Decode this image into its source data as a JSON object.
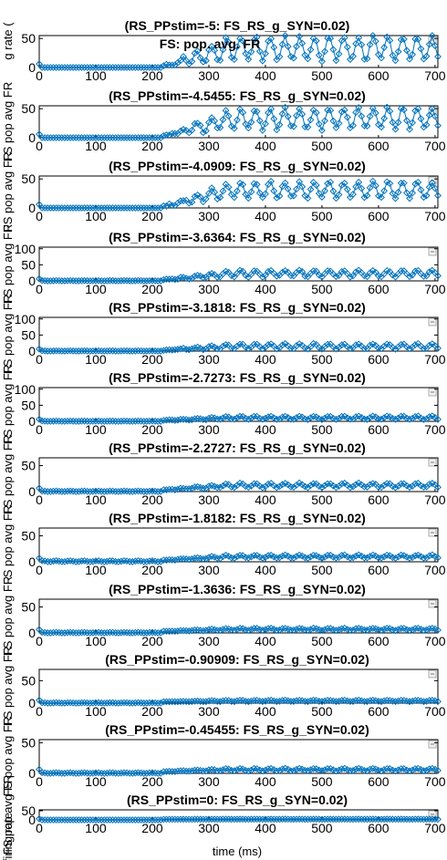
{
  "figure": {
    "xlabel": "time (ms)",
    "ylabel_fragments": [
      "g rate (",
      "Hz",
      "FS pop avg FR",
      "firing rate"
    ],
    "legend_text": "FS: pop. avg. FR"
  },
  "chart_data": [
    {
      "type": "line",
      "title": "(RS_PPstim=-5: FS_RS_g_SYN=0.02)",
      "ylim": [
        0,
        55
      ],
      "yticks": [
        0,
        50
      ],
      "xlim": [
        0,
        705
      ],
      "xticks": [
        0,
        100,
        200,
        300,
        400,
        500,
        600,
        700
      ],
      "amp": 20,
      "base": 30,
      "onset": 3,
      "pre": 0,
      "series": [
        {
          "name": "FS: pop. avg. FR"
        }
      ]
    },
    {
      "type": "line",
      "title": "(RS_PPstim=-4.5455: FS_RS_g_SYN=0.02)",
      "ylim": [
        0,
        55
      ],
      "yticks": [
        0,
        50
      ],
      "xlim": [
        0,
        705
      ],
      "xticks": [
        0,
        100,
        200,
        300,
        400,
        500,
        600,
        700
      ],
      "amp": 18,
      "base": 30,
      "onset": 3,
      "pre": 0,
      "series": [
        {
          "name": "FS: pop. avg. FR"
        }
      ]
    },
    {
      "type": "line",
      "title": "(RS_PPstim=-4.0909: FS_RS_g_SYN=0.02)",
      "ylim": [
        0,
        55
      ],
      "yticks": [
        0,
        50
      ],
      "xlim": [
        0,
        705
      ],
      "xticks": [
        0,
        100,
        200,
        300,
        400,
        500,
        600,
        700
      ],
      "amp": 14,
      "base": 28,
      "onset": 3,
      "pre": 0,
      "series": [
        {
          "name": "FS: pop. avg. FR"
        }
      ]
    },
    {
      "type": "line",
      "title": "(RS_PPstim=-3.6364: FS_RS_g_SYN=0.02)",
      "ylim": [
        0,
        105
      ],
      "yticks": [
        0,
        50,
        100
      ],
      "xlim": [
        0,
        705
      ],
      "xticks": [
        0,
        100,
        200,
        300,
        400,
        500,
        600,
        700
      ],
      "amp": 10,
      "base": 20,
      "onset": 3,
      "pre": 1,
      "series": [
        {
          "name": "FS: pop. avg. FR"
        }
      ]
    },
    {
      "type": "line",
      "title": "(RS_PPstim=-3.1818: FS_RS_g_SYN=0.02)",
      "ylim": [
        0,
        105
      ],
      "yticks": [
        0,
        50,
        100
      ],
      "xlim": [
        0,
        705
      ],
      "xticks": [
        0,
        100,
        200,
        300,
        400,
        500,
        600,
        700
      ],
      "amp": 8,
      "base": 12,
      "onset": 3,
      "pre": 1,
      "series": [
        {
          "name": "FS: pop. avg. FR"
        }
      ]
    },
    {
      "type": "line",
      "title": "(RS_PPstim=-2.7273: FS_RS_g_SYN=0.02)",
      "ylim": [
        0,
        105
      ],
      "yticks": [
        0,
        50,
        100
      ],
      "xlim": [
        0,
        705
      ],
      "xticks": [
        0,
        100,
        200,
        300,
        400,
        500,
        600,
        700
      ],
      "amp": 5,
      "base": 8,
      "onset": 3,
      "pre": 1,
      "series": [
        {
          "name": "FS: pop. avg. FR"
        }
      ]
    },
    {
      "type": "line",
      "title": "(RS_PPstim=-2.2727: FS_RS_g_SYN=0.02)",
      "ylim": [
        0,
        65
      ],
      "yticks": [
        0,
        50
      ],
      "xlim": [
        0,
        705
      ],
      "xticks": [
        0,
        100,
        200,
        300,
        400,
        500,
        600,
        700
      ],
      "amp": 4,
      "base": 9,
      "onset": 3,
      "pre": 1,
      "series": [
        {
          "name": "FS: pop. avg. FR"
        }
      ]
    },
    {
      "type": "line",
      "title": "(RS_PPstim=-1.8182: FS_RS_g_SYN=0.02)",
      "ylim": [
        0,
        65
      ],
      "yticks": [
        0,
        50
      ],
      "xlim": [
        0,
        705
      ],
      "xticks": [
        0,
        100,
        200,
        300,
        400,
        500,
        600,
        700
      ],
      "amp": 3,
      "base": 7,
      "onset": 3,
      "pre": 2,
      "series": [
        {
          "name": "FS: pop. avg. FR"
        }
      ]
    },
    {
      "type": "line",
      "title": "(RS_PPstim=-1.3636: FS_RS_g_SYN=0.02)",
      "ylim": [
        0,
        65
      ],
      "yticks": [
        0,
        50
      ],
      "xlim": [
        0,
        705
      ],
      "xticks": [
        0,
        100,
        200,
        300,
        400,
        500,
        600,
        700
      ],
      "amp": 2,
      "base": 4,
      "onset": 3,
      "pre": 1,
      "series": [
        {
          "name": "FS: pop. avg. FR"
        }
      ]
    },
    {
      "type": "line",
      "title": "(RS_PPstim=-0.90909: FS_RS_g_SYN=0.02)",
      "ylim": [
        0,
        75
      ],
      "yticks": [
        0,
        50
      ],
      "xlim": [
        0,
        705
      ],
      "xticks": [
        0,
        100,
        200,
        300,
        400,
        500,
        600,
        700
      ],
      "amp": 1.5,
      "base": 2,
      "onset": 3,
      "pre": 1,
      "series": [
        {
          "name": "FS: pop. avg. FR"
        }
      ]
    },
    {
      "type": "line",
      "title": "(RS_PPstim=-0.45455: FS_RS_g_SYN=0.02)",
      "ylim": [
        0,
        55
      ],
      "yticks": [
        0,
        50
      ],
      "xlim": [
        0,
        705
      ],
      "xticks": [
        0,
        100,
        200,
        300,
        400,
        500,
        600,
        700
      ],
      "amp": 2,
      "base": 3,
      "onset": 3,
      "pre": 1,
      "series": [
        {
          "name": "FS: pop. avg. FR"
        }
      ]
    },
    {
      "type": "line",
      "title": "(RS_PPstim=0: FS_RS_g_SYN=0.02)",
      "ylim": [
        0,
        55
      ],
      "yticks": [
        0,
        50
      ],
      "xlim": [
        0,
        705
      ],
      "xticks": [
        0,
        100,
        200,
        300,
        400,
        500,
        600,
        700
      ],
      "amp": 0.4,
      "base": 0.6,
      "onset": 3,
      "pre": 0,
      "series": [
        {
          "name": "FS: pop. avg. FR"
        }
      ]
    }
  ]
}
